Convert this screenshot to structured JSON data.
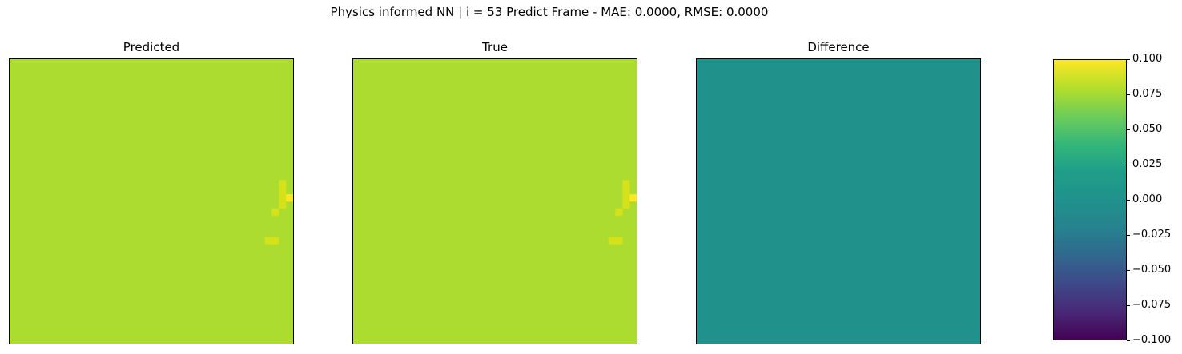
{
  "figure": {
    "suptitle": "Physics informed NN | i = 53 Predict Frame - MAE: 0.0000, RMSE: 0.0000"
  },
  "panels": [
    {
      "title": "Predicted"
    },
    {
      "title": "True"
    },
    {
      "title": "Difference"
    }
  ],
  "colorbar": {
    "ticks": [
      "0.100",
      "0.075",
      "0.050",
      "0.025",
      "0.000",
      "−0.025",
      "−0.050",
      "−0.075",
      "−0.100"
    ]
  },
  "colors": {
    "background_field": "#addc30",
    "hot_light": "#d5e21a",
    "hot_peak": "#fde725",
    "difference_field": "#21918c"
  },
  "chart_data": [
    {
      "type": "heatmap",
      "title": "Predicted",
      "grid": false,
      "axes_ticks": false,
      "grid_size": [
        40,
        40
      ],
      "base_value": 0.075,
      "hot_cells": [
        {
          "col": 38,
          "row": 17,
          "value": 0.09
        },
        {
          "col": 38,
          "row": 18,
          "value": 0.09
        },
        {
          "col": 38,
          "row": 19,
          "value": 0.09
        },
        {
          "col": 39,
          "row": 19,
          "value": 0.1
        },
        {
          "col": 38,
          "row": 20,
          "value": 0.09
        },
        {
          "col": 37,
          "row": 21,
          "value": 0.09
        },
        {
          "col": 36,
          "row": 25,
          "value": 0.09
        },
        {
          "col": 37,
          "row": 25,
          "value": 0.09
        }
      ]
    },
    {
      "type": "heatmap",
      "title": "True",
      "grid": false,
      "axes_ticks": false,
      "grid_size": [
        40,
        40
      ],
      "base_value": 0.075,
      "hot_cells": [
        {
          "col": 38,
          "row": 17,
          "value": 0.09
        },
        {
          "col": 38,
          "row": 18,
          "value": 0.09
        },
        {
          "col": 38,
          "row": 19,
          "value": 0.09
        },
        {
          "col": 39,
          "row": 19,
          "value": 0.1
        },
        {
          "col": 38,
          "row": 20,
          "value": 0.09
        },
        {
          "col": 37,
          "row": 21,
          "value": 0.09
        },
        {
          "col": 36,
          "row": 25,
          "value": 0.09
        },
        {
          "col": 37,
          "row": 25,
          "value": 0.09
        }
      ]
    },
    {
      "type": "heatmap",
      "title": "Difference",
      "grid": false,
      "axes_ticks": false,
      "grid_size": [
        40,
        40
      ],
      "base_value": 0.0,
      "hot_cells": []
    },
    {
      "type": "colorbar",
      "colormap": "viridis",
      "range": [
        -0.1,
        0.1
      ],
      "ticks": [
        0.1,
        0.075,
        0.05,
        0.025,
        0.0,
        -0.025,
        -0.05,
        -0.075,
        -0.1
      ]
    }
  ]
}
